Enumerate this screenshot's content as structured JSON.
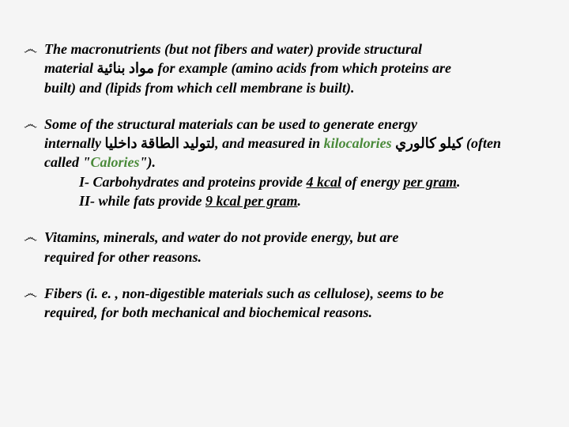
{
  "blocks": [
    {
      "bullet": "෴",
      "lines": [
        {
          "indent": "bullet",
          "runs": [
            {
              "t": "The macronutrients (but not fibers and water) provide structural",
              "cls": "bold"
            }
          ]
        },
        {
          "indent": "cont",
          "runs": [
            {
              "t": "material ",
              "cls": "bold"
            },
            {
              "t": "مواد بنائية",
              "cls": "bold arabic"
            },
            {
              "t": " for example (amino acids from which proteins are",
              "cls": "bold"
            }
          ]
        },
        {
          "indent": "cont",
          "runs": [
            {
              "t": "built) and (lipids from which cell membrane is built).",
              "cls": "bold"
            }
          ]
        }
      ]
    },
    {
      "bullet": "෴",
      "lines": [
        {
          "indent": "bullet",
          "runs": [
            {
              "t": "Some of the structural materials can be used to generate energy",
              "cls": "bold"
            }
          ]
        },
        {
          "indent": "cont",
          "runs": [
            {
              "t": "internally ",
              "cls": "bold"
            },
            {
              "t": "لتوليد الطاقة داخليا",
              "cls": "bold arabic"
            },
            {
              "t": ", and measured in ",
              "cls": "bold"
            },
            {
              "t": "kilocalories",
              "cls": "hl-green"
            },
            {
              "t": " ",
              "cls": "bold"
            },
            {
              "t": "كيلو كالوري",
              "cls": "bold arabic"
            },
            {
              "t": " (often",
              "cls": "bold"
            }
          ]
        },
        {
          "indent": "cont",
          "runs": [
            {
              "t": "called \"",
              "cls": "bold"
            },
            {
              "t": "Calories",
              "cls": "hl-green"
            },
            {
              "t": "\").",
              "cls": "bold"
            }
          ]
        },
        {
          "indent": "sub",
          "runs": [
            {
              "t": "I- Carbohydrates and proteins provide ",
              "cls": "bold"
            },
            {
              "t": "4 kcal",
              "cls": "bold u"
            },
            {
              "t": " of energy ",
              "cls": "bold"
            },
            {
              "t": "per gram",
              "cls": "bold u"
            },
            {
              "t": ".",
              "cls": "bold"
            }
          ]
        },
        {
          "indent": "sub",
          "runs": [
            {
              "t": "II- while fats provide ",
              "cls": "bold"
            },
            {
              "t": "9 kcal per gram",
              "cls": "bold u"
            },
            {
              "t": ".",
              "cls": "bold"
            }
          ]
        }
      ]
    },
    {
      "bullet": "෴",
      "lines": [
        {
          "indent": "bullet",
          "runs": [
            {
              "t": "Vitamins, minerals, and water do not provide energy, but are",
              "cls": "bold"
            }
          ]
        },
        {
          "indent": "cont",
          "runs": [
            {
              "t": "required for other reasons.",
              "cls": "bold"
            }
          ]
        }
      ]
    },
    {
      "bullet": "෴",
      "lines": [
        {
          "indent": "bullet",
          "runs": [
            {
              "t": "Fibers (i. e. , non-digestible materials such as cellulose), seems to be",
              "cls": "bold"
            }
          ]
        },
        {
          "indent": "cont",
          "runs": [
            {
              "t": "required, for both mechanical and biochemical reasons.",
              "cls": "bold"
            }
          ]
        }
      ]
    }
  ]
}
